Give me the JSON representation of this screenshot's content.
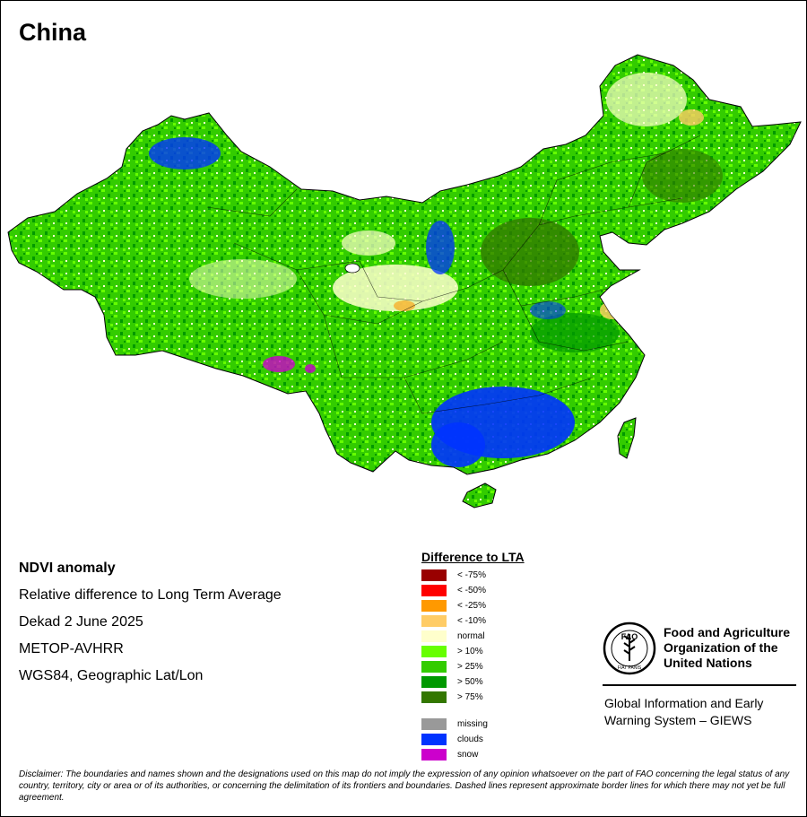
{
  "title": "China",
  "info": {
    "line1": "NDVI anomaly",
    "line2": "Relative difference to Long Term Average",
    "line3": "Dekad 2 June 2025",
    "line4": "METOP-AVHRR",
    "line5": "WGS84, Geographic Lat/Lon"
  },
  "legend": {
    "title": "Difference to LTA",
    "items": [
      {
        "label": "< -75%",
        "color": "#990000"
      },
      {
        "label": "< -50%",
        "color": "#ff0000"
      },
      {
        "label": "< -25%",
        "color": "#ff9900"
      },
      {
        "label": "< -10%",
        "color": "#ffcc66"
      },
      {
        "label": "normal",
        "color": "#ffffcc"
      },
      {
        "label": "> 10%",
        "color": "#66ff00"
      },
      {
        "label": "> 25%",
        "color": "#33cc00"
      },
      {
        "label": "> 50%",
        "color": "#009900"
      },
      {
        "label": "> 75%",
        "color": "#337700"
      }
    ],
    "extra": [
      {
        "label": "missing",
        "color": "#999999"
      },
      {
        "label": "clouds",
        "color": "#0033ff"
      },
      {
        "label": "snow",
        "color": "#cc00cc"
      }
    ]
  },
  "org": {
    "line1": "Food and Agriculture",
    "line2": "Organization of the",
    "line3": "United Nations",
    "logo_text": "FAO",
    "logo_motto": "FIAT PANIS"
  },
  "giews": {
    "line1": "Global Information and Early",
    "line2": "Warning System – GIEWS"
  },
  "disclaimer": "Disclaimer: The boundaries and names shown and the designations used on this map do not imply the expression of any opinion whatsoever on the part of FAO concerning the legal status of any country, territory, city or area or of its authorities, or concerning the delimitation of its frontiers and boundaries. Dashed lines represent approximate border lines for which there may not yet be full agreement."
}
